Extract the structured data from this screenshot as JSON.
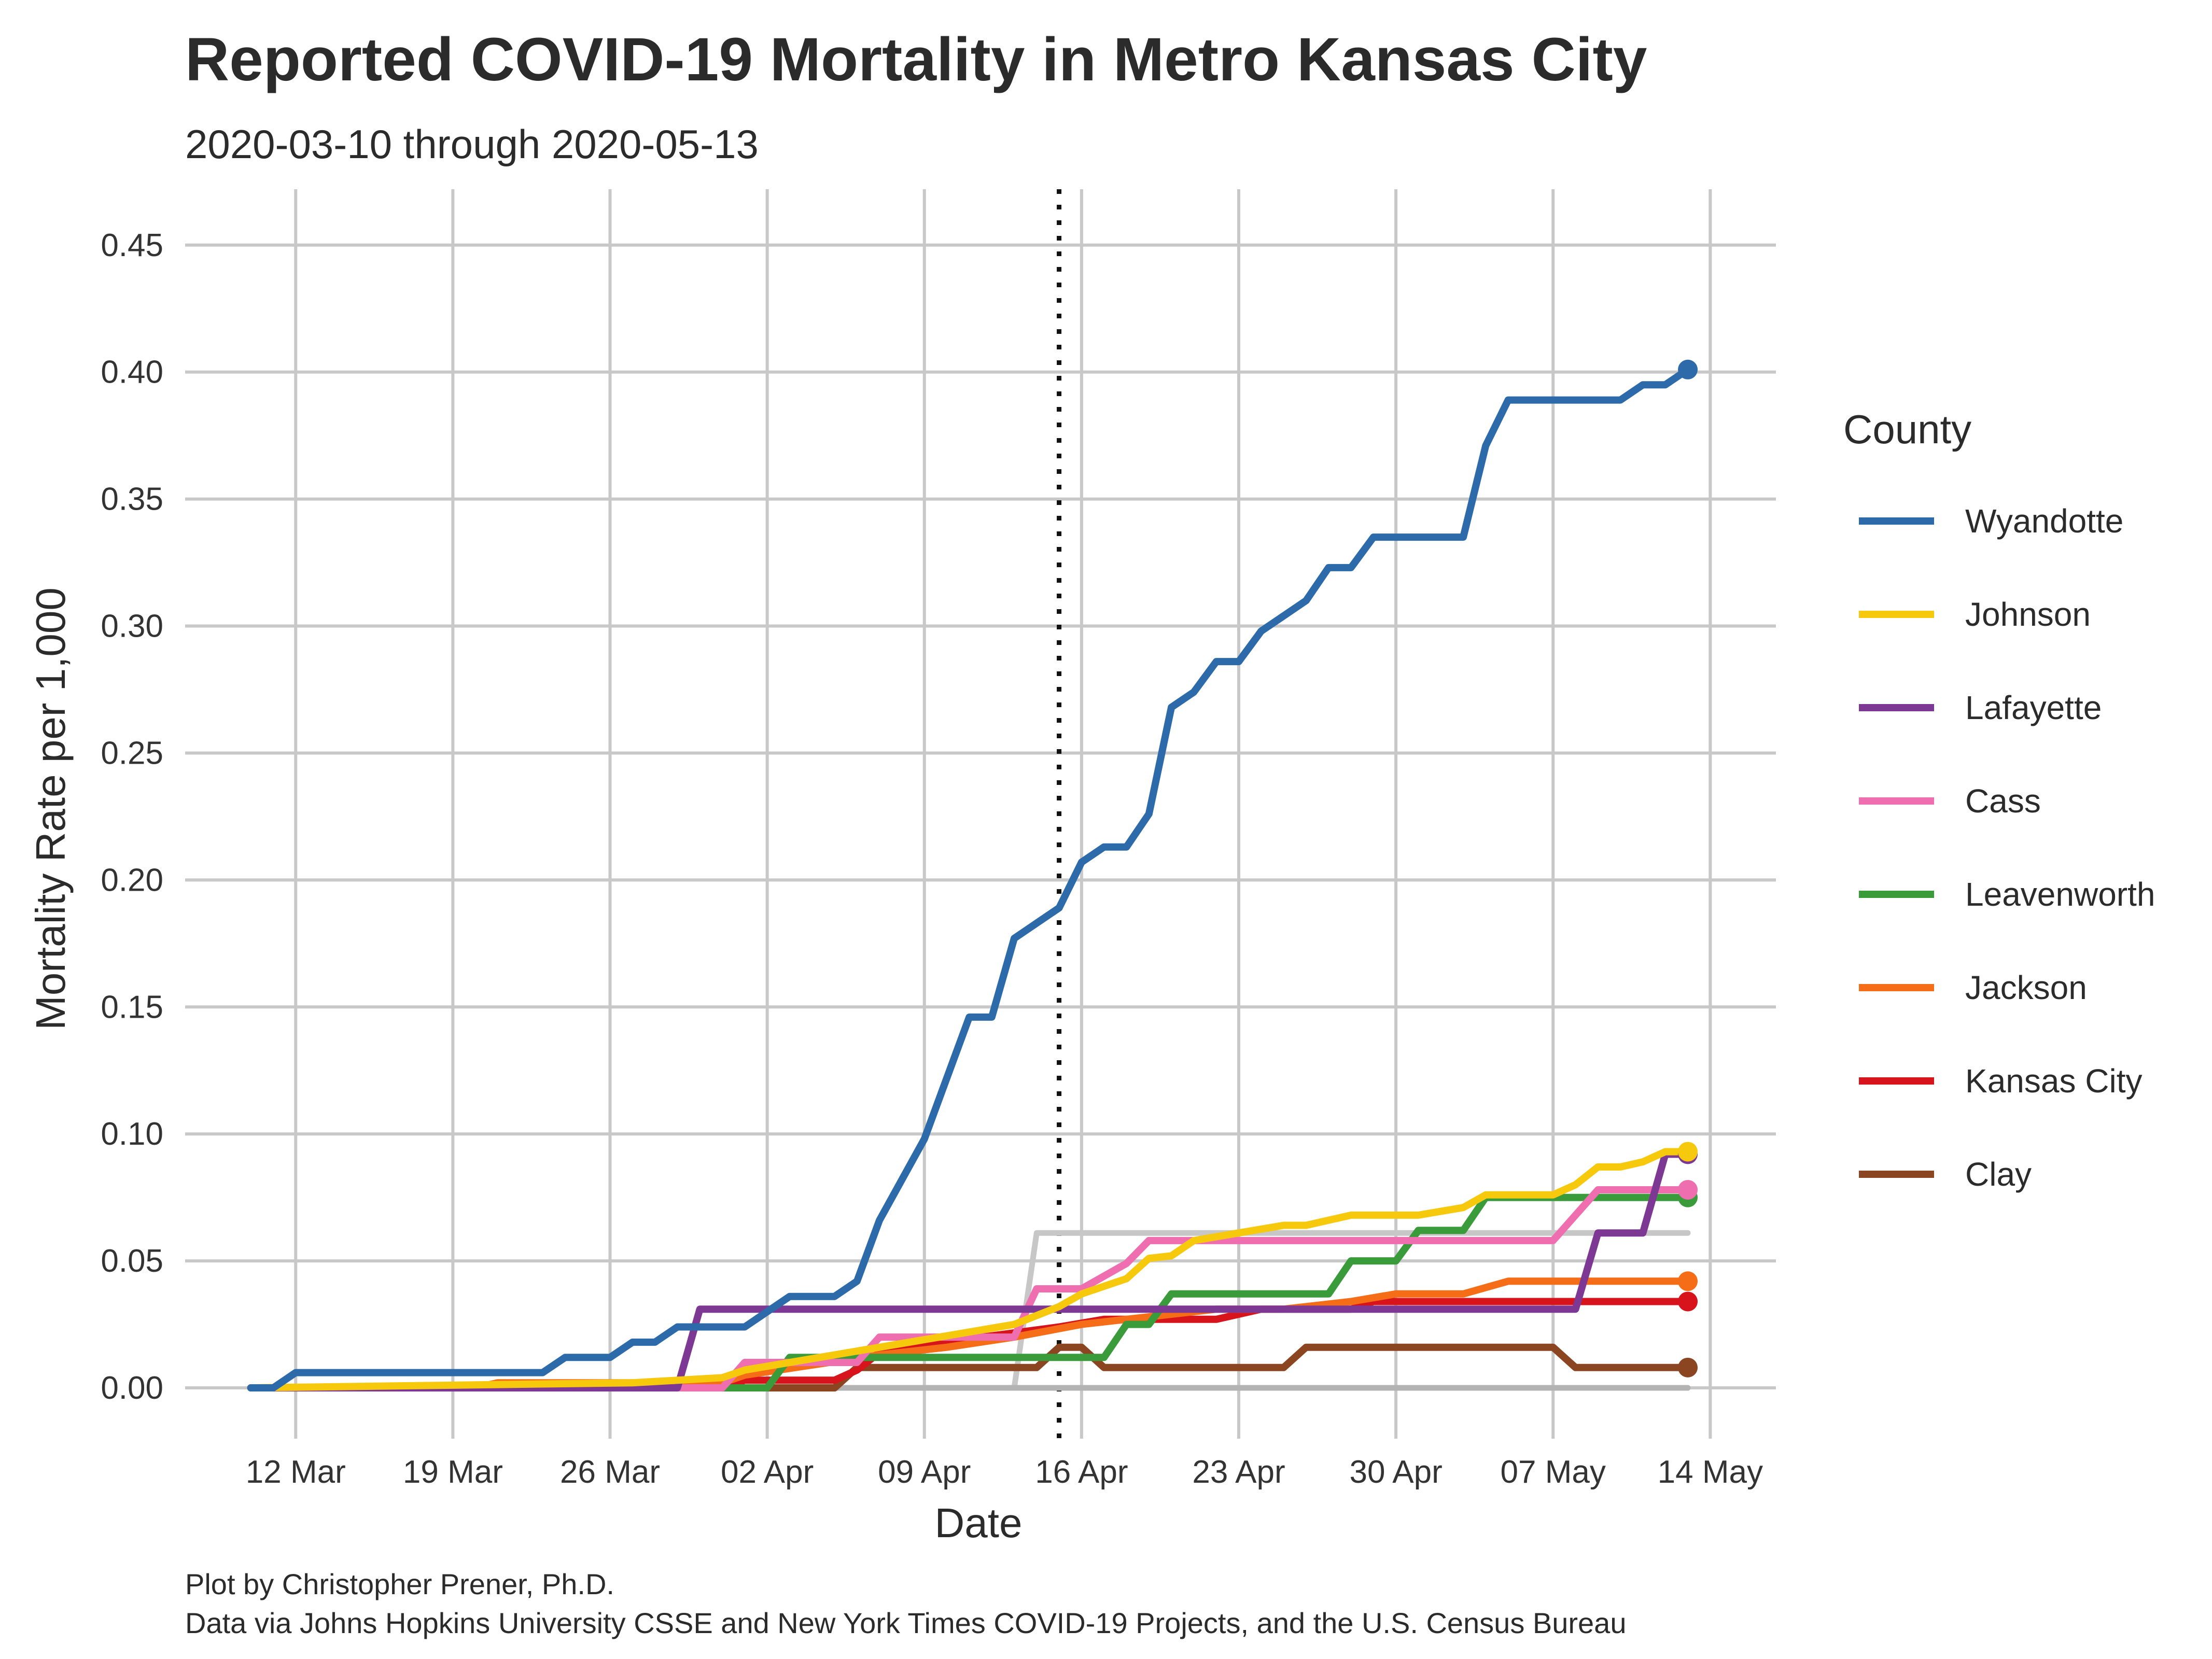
{
  "chart_data": {
    "type": "line",
    "title": "Reported COVID-19 Mortality in Metro Kansas City",
    "subtitle": "2020-03-10 through 2020-05-13",
    "xlabel": "Date",
    "ylabel": "Mortality Rate per 1,000",
    "x_tick_labels": [
      "12 Mar",
      "19 Mar",
      "26 Mar",
      "02 Apr",
      "09 Apr",
      "16 Apr",
      "23 Apr",
      "30 Apr",
      "07 May",
      "14 May"
    ],
    "x_tick_dates": [
      "2020-03-12",
      "2020-03-19",
      "2020-03-26",
      "2020-04-02",
      "2020-04-09",
      "2020-04-16",
      "2020-04-23",
      "2020-04-30",
      "2020-05-07",
      "2020-05-14"
    ],
    "y_ticks": [
      "0.00",
      "0.05",
      "0.10",
      "0.15",
      "0.20",
      "0.25",
      "0.30",
      "0.35",
      "0.40",
      "0.45"
    ],
    "xlim": [
      "2020-03-10",
      "2020-05-14"
    ],
    "ylim": [
      0,
      0.45
    ],
    "grid": true,
    "reference_line": {
      "date": "2020-04-15",
      "style": "dotted",
      "color": "#111111"
    },
    "legend": {
      "title": "County",
      "placement": "right"
    },
    "series": [
      {
        "name": "Wyandotte",
        "color": "#2c6aa9",
        "x": [
          "2020-03-10",
          "2020-03-11",
          "2020-03-12",
          "2020-03-23",
          "2020-03-24",
          "2020-03-26",
          "2020-03-27",
          "2020-03-28",
          "2020-03-29",
          "2020-03-30",
          "2020-03-31",
          "2020-04-01",
          "2020-04-02",
          "2020-04-03",
          "2020-04-04",
          "2020-04-05",
          "2020-04-06",
          "2020-04-07",
          "2020-04-08",
          "2020-04-09",
          "2020-04-10",
          "2020-04-11",
          "2020-04-12",
          "2020-04-13",
          "2020-04-14",
          "2020-04-15",
          "2020-04-16",
          "2020-04-17",
          "2020-04-18",
          "2020-04-19",
          "2020-04-20",
          "2020-04-21",
          "2020-04-22",
          "2020-04-23",
          "2020-04-24",
          "2020-04-25",
          "2020-04-26",
          "2020-04-27",
          "2020-04-28",
          "2020-04-29",
          "2020-04-30",
          "2020-05-01",
          "2020-05-02",
          "2020-05-03",
          "2020-05-04",
          "2020-05-05",
          "2020-05-06",
          "2020-05-07",
          "2020-05-08",
          "2020-05-09",
          "2020-05-10",
          "2020-05-11",
          "2020-05-12",
          "2020-05-13"
        ],
        "values": [
          0.0,
          0.0,
          0.006,
          0.006,
          0.012,
          0.012,
          0.018,
          0.018,
          0.024,
          0.024,
          0.024,
          0.024,
          0.03,
          0.036,
          0.036,
          0.036,
          0.042,
          0.066,
          0.082,
          0.098,
          0.122,
          0.146,
          0.146,
          0.177,
          0.183,
          0.189,
          0.207,
          0.213,
          0.213,
          0.226,
          0.268,
          0.274,
          0.286,
          0.286,
          0.298,
          0.304,
          0.31,
          0.323,
          0.323,
          0.335,
          0.335,
          0.335,
          0.335,
          0.335,
          0.371,
          0.389,
          0.389,
          0.389,
          0.389,
          0.389,
          0.389,
          0.395,
          0.395,
          0.401
        ]
      },
      {
        "name": "Johnson",
        "color": "#f7c90d",
        "x": [
          "2020-03-10",
          "2020-03-27",
          "2020-03-31",
          "2020-04-01",
          "2020-04-05",
          "2020-04-09",
          "2020-04-13",
          "2020-04-15",
          "2020-04-16",
          "2020-04-18",
          "2020-04-19",
          "2020-04-20",
          "2020-04-21",
          "2020-04-23",
          "2020-04-25",
          "2020-04-26",
          "2020-04-28",
          "2020-04-30",
          "2020-05-01",
          "2020-05-03",
          "2020-05-04",
          "2020-05-07",
          "2020-05-08",
          "2020-05-09",
          "2020-05-10",
          "2020-05-11",
          "2020-05-12",
          "2020-05-13"
        ],
        "values": [
          0.0,
          0.002,
          0.004,
          0.007,
          0.013,
          0.019,
          0.025,
          0.032,
          0.037,
          0.043,
          0.051,
          0.052,
          0.058,
          0.061,
          0.064,
          0.064,
          0.068,
          0.068,
          0.068,
          0.071,
          0.076,
          0.076,
          0.08,
          0.087,
          0.087,
          0.089,
          0.093,
          0.093
        ]
      },
      {
        "name": "Lafayette",
        "color": "#7d3894",
        "x": [
          "2020-03-10",
          "2020-03-29",
          "2020-03-30",
          "2020-05-08",
          "2020-05-09",
          "2020-05-11",
          "2020-05-12",
          "2020-05-13"
        ],
        "values": [
          0.0,
          0.0,
          0.031,
          0.031,
          0.061,
          0.061,
          0.092,
          0.092
        ]
      },
      {
        "name": "Cass",
        "color": "#ef6eb0",
        "x": [
          "2020-03-10",
          "2020-03-31",
          "2020-04-01",
          "2020-04-06",
          "2020-04-07",
          "2020-04-13",
          "2020-04-14",
          "2020-04-15",
          "2020-04-16",
          "2020-04-18",
          "2020-04-19",
          "2020-04-20",
          "2020-05-07",
          "2020-05-08",
          "2020-05-09",
          "2020-05-13"
        ],
        "values": [
          0.0,
          0.0,
          0.01,
          0.01,
          0.02,
          0.02,
          0.039,
          0.039,
          0.039,
          0.049,
          0.058,
          0.058,
          0.058,
          0.068,
          0.078,
          0.078
        ]
      },
      {
        "name": "Leavenworth",
        "color": "#3a9b3a",
        "x": [
          "2020-03-10",
          "2020-04-02",
          "2020-04-03",
          "2020-04-07",
          "2020-04-08",
          "2020-04-17",
          "2020-04-18",
          "2020-04-19",
          "2020-04-20",
          "2020-04-27",
          "2020-04-28",
          "2020-04-30",
          "2020-05-01",
          "2020-05-03",
          "2020-05-04",
          "2020-05-13"
        ],
        "values": [
          0.0,
          0.0,
          0.012,
          0.012,
          0.012,
          0.012,
          0.025,
          0.025,
          0.037,
          0.037,
          0.05,
          0.05,
          0.062,
          0.062,
          0.075,
          0.075
        ]
      },
      {
        "name": "Jackson",
        "color": "#f56d17",
        "x": [
          "2020-03-10",
          "2020-03-20",
          "2020-03-21",
          "2020-03-31",
          "2020-04-01",
          "2020-04-04",
          "2020-04-07",
          "2020-04-10",
          "2020-04-13",
          "2020-04-16",
          "2020-04-19",
          "2020-04-22",
          "2020-04-25",
          "2020-04-28",
          "2020-04-30",
          "2020-05-03",
          "2020-05-05",
          "2020-05-13"
        ],
        "values": [
          0.0,
          0.0,
          0.002,
          0.002,
          0.005,
          0.009,
          0.013,
          0.016,
          0.02,
          0.025,
          0.028,
          0.031,
          0.031,
          0.034,
          0.037,
          0.037,
          0.042,
          0.042
        ]
      },
      {
        "name": "Kansas City",
        "color": "#d7141c",
        "x": [
          "2020-03-10",
          "2020-03-31",
          "2020-04-01",
          "2020-04-05",
          "2020-04-06",
          "2020-04-07",
          "2020-04-09",
          "2020-04-15",
          "2020-04-17",
          "2020-04-22",
          "2020-04-24",
          "2020-04-28",
          "2020-04-29",
          "2020-05-13"
        ],
        "values": [
          0.0,
          0.0,
          0.003,
          0.003,
          0.007,
          0.014,
          0.017,
          0.024,
          0.027,
          0.027,
          0.031,
          0.031,
          0.034,
          0.034
        ]
      },
      {
        "name": "Clay",
        "color": "#8c4521",
        "x": [
          "2020-03-10",
          "2020-04-05",
          "2020-04-06",
          "2020-04-14",
          "2020-04-15",
          "2020-04-16",
          "2020-04-17",
          "2020-04-25",
          "2020-04-26",
          "2020-05-07",
          "2020-05-08",
          "2020-05-13"
        ],
        "values": [
          0.0,
          0.0,
          0.008,
          0.008,
          0.016,
          0.016,
          0.008,
          0.008,
          0.016,
          0.016,
          0.008,
          0.008
        ]
      },
      {
        "color": "#c7c7c7",
        "x": [
          "2020-03-10",
          "2020-04-13",
          "2020-04-14",
          "2020-05-13"
        ],
        "values": [
          0.0,
          0.0,
          0.061,
          0.061
        ]
      },
      {
        "color": "#b3b3b3",
        "x": [
          "2020-03-10",
          "2020-05-13"
        ],
        "values": [
          0.0,
          0.0
        ]
      }
    ]
  },
  "caption": {
    "line1": "Plot by Christopher Prener, Ph.D.",
    "line2": "Data via Johns Hopkins University CSSE and New York Times COVID-19 Projects, and the U.S. Census Bureau"
  }
}
